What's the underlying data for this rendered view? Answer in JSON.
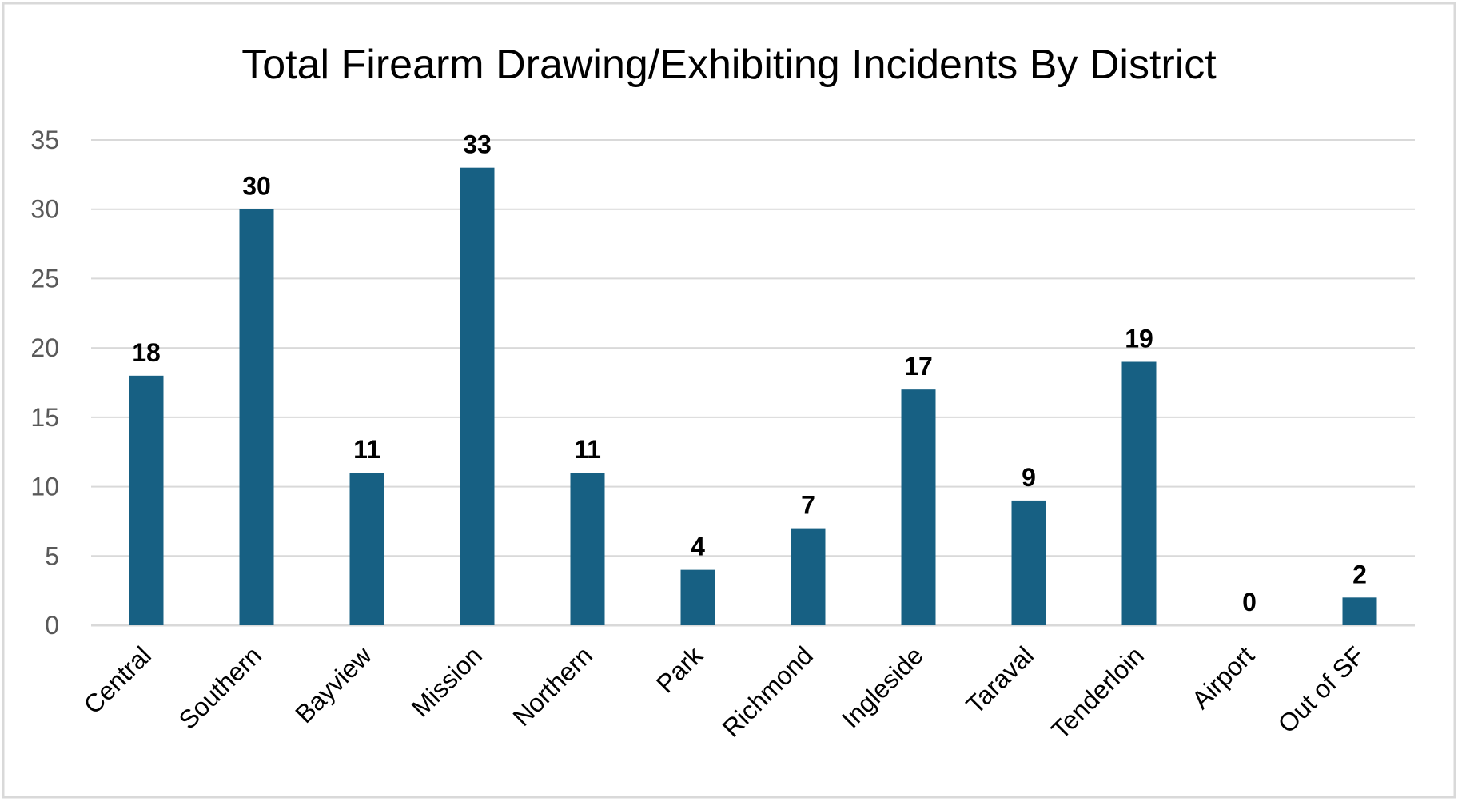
{
  "chart_data": {
    "type": "bar",
    "title": "Total Firearm Drawing/Exhibiting Incidents By District",
    "xlabel": "",
    "ylabel": "",
    "categories": [
      "Central",
      "Southern",
      "Bayview",
      "Mission",
      "Northern",
      "Park",
      "Richmond",
      "Ingleside",
      "Taraval",
      "Tenderloin",
      "Airport",
      "Out of SF"
    ],
    "values": [
      18,
      30,
      11,
      33,
      11,
      4,
      7,
      17,
      9,
      19,
      0,
      2
    ],
    "ylim": [
      0,
      35
    ],
    "yticks": [
      0,
      5,
      10,
      15,
      20,
      25,
      30,
      35
    ],
    "grid": true,
    "legend": "none",
    "data_labels": true,
    "colors": {
      "bar": "#176083",
      "grid": "#d9d9d9",
      "axis_text": "#595959"
    }
  }
}
